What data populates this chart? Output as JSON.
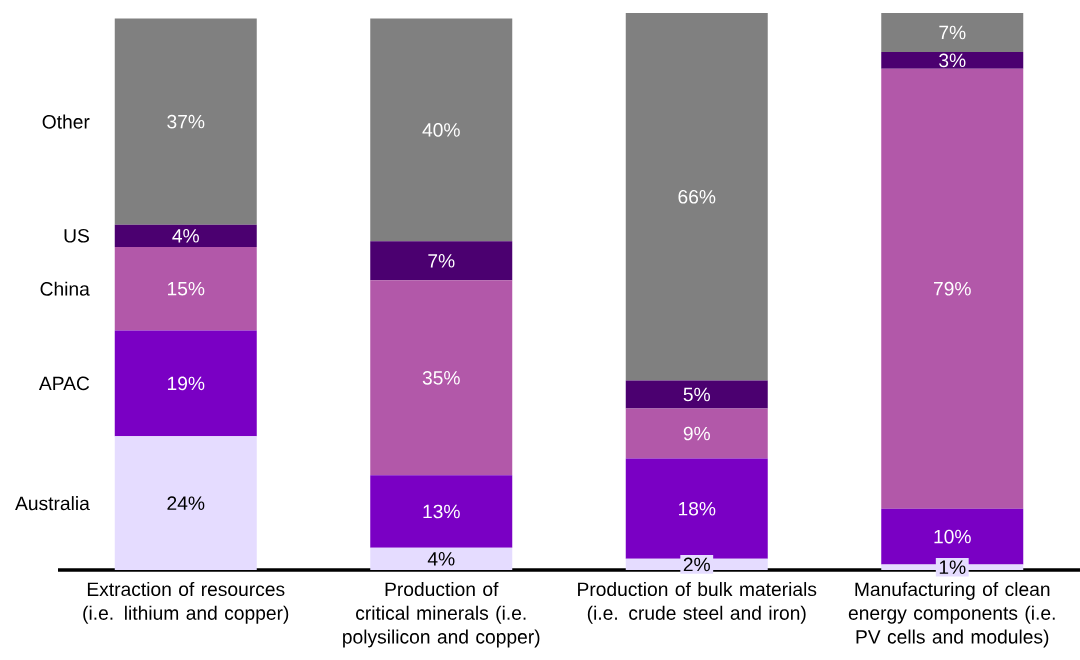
{
  "chart_data": {
    "type": "bar",
    "stacked": true,
    "categories": [
      "Extraction of resources (i.e. lithium and copper)",
      "Production of critical minerals (i.e. polysilicon and copper)",
      "Production of bulk materials (i.e. crude steel and iron)",
      "Manufacturing of clean energy components (i.e. PV cells and modules)"
    ],
    "series": [
      {
        "name": "Australia",
        "color": "#e5dcff",
        "values": [
          24,
          4,
          2,
          1
        ],
        "value_labels": [
          "24%",
          "4%",
          "2%",
          "1%"
        ]
      },
      {
        "name": "APAC",
        "color": "#7a00c4",
        "values": [
          19,
          13,
          18,
          10
        ],
        "value_labels": [
          "19%",
          "13%",
          "18%",
          "10%"
        ]
      },
      {
        "name": "China",
        "color": "#b258a9",
        "values": [
          15,
          35,
          9,
          79
        ],
        "value_labels": [
          "15%",
          "35%",
          "9%",
          "79%"
        ]
      },
      {
        "name": "US",
        "color": "#4b0070",
        "values": [
          4,
          7,
          5,
          3
        ],
        "value_labels": [
          "4%",
          "7%",
          "5%",
          "3%"
        ]
      },
      {
        "name": "Other",
        "color": "#808080",
        "values": [
          37,
          40,
          66,
          7
        ],
        "value_labels": [
          "37%",
          "40%",
          "66%",
          "7%"
        ]
      }
    ]
  }
}
